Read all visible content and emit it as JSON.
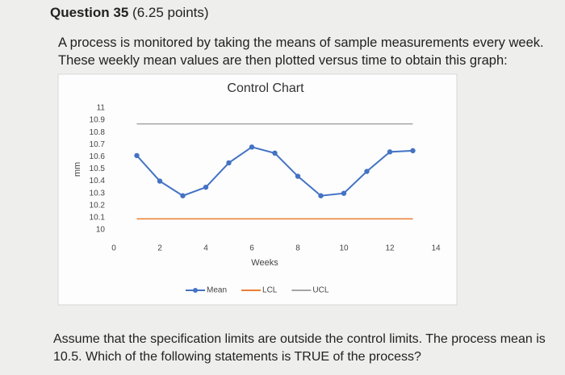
{
  "question": {
    "title": "Question 35",
    "points": "(6.25 points)",
    "text": "A process is monitored by taking the means of sample measurements every week. These weekly mean values are then plotted versus time to obtain this graph:",
    "prompt": "Assume that the specification limits are outside the control limits. The process mean is 10.5. Which of the following statements is TRUE of the process?"
  },
  "chart_data": {
    "type": "line",
    "title": "Control Chart",
    "xlabel": "Weeks",
    "ylabel": "mm",
    "x": [
      1,
      2,
      3,
      4,
      5,
      6,
      7,
      8,
      9,
      10,
      11,
      12,
      13
    ],
    "xlim": [
      0,
      14
    ],
    "xticks": [
      0,
      2,
      4,
      6,
      8,
      10,
      12,
      14
    ],
    "ylim": [
      10,
      11
    ],
    "yticks": [
      10,
      10.1,
      10.2,
      10.3,
      10.4,
      10.5,
      10.6,
      10.7,
      10.8,
      10.9,
      11
    ],
    "legend": "bottom",
    "series": [
      {
        "name": "Mean",
        "color": "#4472c4",
        "marker": true,
        "values": [
          10.61,
          10.4,
          10.28,
          10.35,
          10.55,
          10.68,
          10.63,
          10.44,
          10.28,
          10.3,
          10.48,
          10.64,
          10.65
        ]
      },
      {
        "name": "LCL",
        "color": "#ed7d31",
        "marker": false,
        "values": [
          10.09,
          10.09,
          10.09,
          10.09,
          10.09,
          10.09,
          10.09,
          10.09,
          10.09,
          10.09,
          10.09,
          10.09,
          10.09
        ]
      },
      {
        "name": "UCL",
        "color": "#a5a5a5",
        "marker": false,
        "values": [
          10.87,
          10.87,
          10.87,
          10.87,
          10.87,
          10.87,
          10.87,
          10.87,
          10.87,
          10.87,
          10.87,
          10.87,
          10.87
        ]
      }
    ]
  }
}
